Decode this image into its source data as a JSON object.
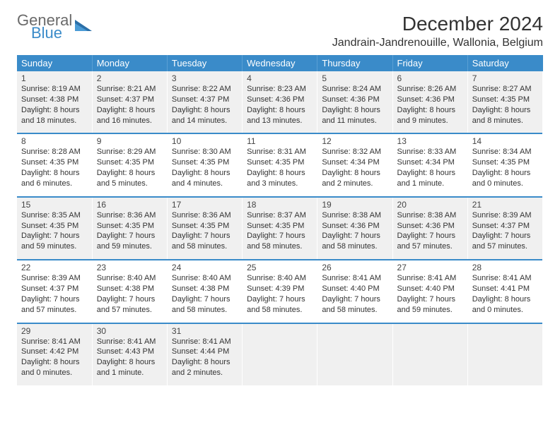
{
  "brand": {
    "word1": "General",
    "word2": "Blue"
  },
  "title": "December 2024",
  "location": "Jandrain-Jandrenouille, Wallonia, Belgium",
  "weekdays": [
    "Sunday",
    "Monday",
    "Tuesday",
    "Wednesday",
    "Thursday",
    "Friday",
    "Saturday"
  ],
  "colors": {
    "header_bg": "#3a8bc9",
    "header_text": "#ffffff",
    "alt_row_bg": "#f0f0f0",
    "separator": "#3a8bc9",
    "logo_gray": "#6a6a6a",
    "logo_blue": "#3a8bc9"
  },
  "days": {
    "1": {
      "sunrise": "8:19 AM",
      "sunset": "4:38 PM",
      "daylight": "8 hours and 18 minutes."
    },
    "2": {
      "sunrise": "8:21 AM",
      "sunset": "4:37 PM",
      "daylight": "8 hours and 16 minutes."
    },
    "3": {
      "sunrise": "8:22 AM",
      "sunset": "4:37 PM",
      "daylight": "8 hours and 14 minutes."
    },
    "4": {
      "sunrise": "8:23 AM",
      "sunset": "4:36 PM",
      "daylight": "8 hours and 13 minutes."
    },
    "5": {
      "sunrise": "8:24 AM",
      "sunset": "4:36 PM",
      "daylight": "8 hours and 11 minutes."
    },
    "6": {
      "sunrise": "8:26 AM",
      "sunset": "4:36 PM",
      "daylight": "8 hours and 9 minutes."
    },
    "7": {
      "sunrise": "8:27 AM",
      "sunset": "4:35 PM",
      "daylight": "8 hours and 8 minutes."
    },
    "8": {
      "sunrise": "8:28 AM",
      "sunset": "4:35 PM",
      "daylight": "8 hours and 6 minutes."
    },
    "9": {
      "sunrise": "8:29 AM",
      "sunset": "4:35 PM",
      "daylight": "8 hours and 5 minutes."
    },
    "10": {
      "sunrise": "8:30 AM",
      "sunset": "4:35 PM",
      "daylight": "8 hours and 4 minutes."
    },
    "11": {
      "sunrise": "8:31 AM",
      "sunset": "4:35 PM",
      "daylight": "8 hours and 3 minutes."
    },
    "12": {
      "sunrise": "8:32 AM",
      "sunset": "4:34 PM",
      "daylight": "8 hours and 2 minutes."
    },
    "13": {
      "sunrise": "8:33 AM",
      "sunset": "4:34 PM",
      "daylight": "8 hours and 1 minute."
    },
    "14": {
      "sunrise": "8:34 AM",
      "sunset": "4:35 PM",
      "daylight": "8 hours and 0 minutes."
    },
    "15": {
      "sunrise": "8:35 AM",
      "sunset": "4:35 PM",
      "daylight": "7 hours and 59 minutes."
    },
    "16": {
      "sunrise": "8:36 AM",
      "sunset": "4:35 PM",
      "daylight": "7 hours and 59 minutes."
    },
    "17": {
      "sunrise": "8:36 AM",
      "sunset": "4:35 PM",
      "daylight": "7 hours and 58 minutes."
    },
    "18": {
      "sunrise": "8:37 AM",
      "sunset": "4:35 PM",
      "daylight": "7 hours and 58 minutes."
    },
    "19": {
      "sunrise": "8:38 AM",
      "sunset": "4:36 PM",
      "daylight": "7 hours and 58 minutes."
    },
    "20": {
      "sunrise": "8:38 AM",
      "sunset": "4:36 PM",
      "daylight": "7 hours and 57 minutes."
    },
    "21": {
      "sunrise": "8:39 AM",
      "sunset": "4:37 PM",
      "daylight": "7 hours and 57 minutes."
    },
    "22": {
      "sunrise": "8:39 AM",
      "sunset": "4:37 PM",
      "daylight": "7 hours and 57 minutes."
    },
    "23": {
      "sunrise": "8:40 AM",
      "sunset": "4:38 PM",
      "daylight": "7 hours and 57 minutes."
    },
    "24": {
      "sunrise": "8:40 AM",
      "sunset": "4:38 PM",
      "daylight": "7 hours and 58 minutes."
    },
    "25": {
      "sunrise": "8:40 AM",
      "sunset": "4:39 PM",
      "daylight": "7 hours and 58 minutes."
    },
    "26": {
      "sunrise": "8:41 AM",
      "sunset": "4:40 PM",
      "daylight": "7 hours and 58 minutes."
    },
    "27": {
      "sunrise": "8:41 AM",
      "sunset": "4:40 PM",
      "daylight": "7 hours and 59 minutes."
    },
    "28": {
      "sunrise": "8:41 AM",
      "sunset": "4:41 PM",
      "daylight": "8 hours and 0 minutes."
    },
    "29": {
      "sunrise": "8:41 AM",
      "sunset": "4:42 PM",
      "daylight": "8 hours and 0 minutes."
    },
    "30": {
      "sunrise": "8:41 AM",
      "sunset": "4:43 PM",
      "daylight": "8 hours and 1 minute."
    },
    "31": {
      "sunrise": "8:41 AM",
      "sunset": "4:44 PM",
      "daylight": "8 hours and 2 minutes."
    }
  },
  "labels": {
    "sunrise": "Sunrise: ",
    "sunset": "Sunset: ",
    "daylight": "Daylight: "
  },
  "layout": {
    "type": "calendar-table",
    "columns": 7,
    "rows": 5,
    "first_day_column": 0,
    "last_day": 31,
    "alt_row_indices": [
      0,
      2,
      4
    ]
  }
}
